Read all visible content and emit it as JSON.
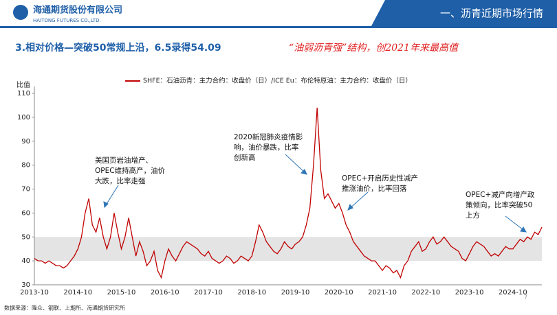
{
  "header": {
    "company": "海通期货股份有限公司",
    "company_en": "HAITONG FUTURES CO.,LTD.",
    "section": "一、沥青近期市场行情"
  },
  "subtitle": "3.相对价格—突破50常规上沿，6.5录得54.09",
  "highlight": "“油弱沥青强”结构，创2021年来最高值",
  "source": "数据来源：隆众、钢联、上期所、海通期货研究所",
  "page_number": "7",
  "chart_data": {
    "type": "line",
    "y_label": "比值",
    "x": [
      "2013-10",
      "2013-11",
      "2013-12",
      "2014-01",
      "2014-02",
      "2014-03",
      "2014-04",
      "2014-05",
      "2014-06",
      "2014-07",
      "2014-08",
      "2014-09",
      "2014-10",
      "2014-11",
      "2014-12",
      "2015-01",
      "2015-02",
      "2015-03",
      "2015-04",
      "2015-05",
      "2015-06",
      "2015-07",
      "2015-08",
      "2015-09",
      "2015-10",
      "2015-11",
      "2015-12",
      "2016-01",
      "2016-02",
      "2016-03",
      "2016-04",
      "2016-05",
      "2016-06",
      "2016-07",
      "2016-08",
      "2016-09",
      "2016-10",
      "2016-11",
      "2016-12",
      "2017-01",
      "2017-02",
      "2017-03",
      "2017-04",
      "2017-05",
      "2017-06",
      "2017-07",
      "2017-08",
      "2017-09",
      "2017-10",
      "2017-11",
      "2017-12",
      "2018-01",
      "2018-02",
      "2018-03",
      "2018-04",
      "2018-05",
      "2018-06",
      "2018-07",
      "2018-08",
      "2018-09",
      "2018-10",
      "2018-11",
      "2018-12",
      "2019-01",
      "2019-02",
      "2019-03",
      "2019-04",
      "2019-05",
      "2019-06",
      "2019-07",
      "2019-08",
      "2019-09",
      "2019-10",
      "2019-11",
      "2019-12",
      "2020-01",
      "2020-02",
      "2020-03",
      "2020-04",
      "2020-05",
      "2020-06",
      "2020-07",
      "2020-08",
      "2020-09",
      "2020-10",
      "2020-11",
      "2020-12",
      "2021-01",
      "2021-02",
      "2021-03",
      "2021-04",
      "2021-05",
      "2021-06",
      "2021-07",
      "2021-08",
      "2021-09",
      "2021-10",
      "2021-11",
      "2021-12",
      "2022-01",
      "2022-02",
      "2022-03",
      "2022-04",
      "2022-05",
      "2022-06",
      "2022-07",
      "2022-08",
      "2022-09",
      "2022-10",
      "2022-11",
      "2022-12",
      "2023-01",
      "2023-02",
      "2023-03",
      "2023-04",
      "2023-05",
      "2023-06",
      "2023-07",
      "2023-08",
      "2023-09",
      "2023-10",
      "2023-11",
      "2023-12",
      "2024-01",
      "2024-02",
      "2024-03",
      "2024-04",
      "2024-05",
      "2024-06",
      "2024-07",
      "2024-08",
      "2024-09",
      "2024-10",
      "2024-11",
      "2024-12",
      "2025-01",
      "2025-02",
      "2025-03",
      "2025-04",
      "2025-05",
      "2025-06"
    ],
    "series": [
      {
        "name": "SHFE：石油沥青：主力合约：收盘价（日）/ICE Eu：布伦特原油：主力合约：收盘价（日）",
        "color": "#c00000",
        "values": [
          41,
          40,
          40,
          39,
          40,
          39,
          38,
          38,
          37,
          38,
          40,
          42,
          45,
          50,
          60,
          66,
          55,
          52,
          58,
          50,
          45,
          50,
          60,
          52,
          45,
          50,
          58,
          50,
          42,
          48,
          44,
          38,
          40,
          44,
          36,
          33,
          40,
          45,
          42,
          40,
          43,
          46,
          48,
          47,
          46,
          45,
          43,
          42,
          44,
          41,
          40,
          39,
          40,
          42,
          41,
          39,
          40,
          42,
          41,
          40,
          42,
          48,
          55,
          52,
          48,
          46,
          44,
          43,
          45,
          48,
          46,
          45,
          47,
          48,
          50,
          55,
          62,
          80,
          104,
          78,
          66,
          68,
          65,
          62,
          64,
          60,
          55,
          52,
          48,
          46,
          44,
          42,
          41,
          40,
          40,
          38,
          36,
          38,
          37,
          35,
          36,
          33,
          38,
          40,
          44,
          46,
          48,
          44,
          45,
          48,
          50,
          47,
          48,
          50,
          48,
          46,
          45,
          44,
          41,
          40,
          43,
          46,
          48,
          47,
          46,
          44,
          42,
          43,
          42,
          44,
          46,
          45,
          45,
          47,
          49,
          48,
          50,
          49,
          52,
          51,
          54.09
        ]
      }
    ],
    "ylim": [
      30,
      110
    ],
    "yticks": [
      30,
      40,
      50,
      60,
      70,
      80,
      90,
      100,
      110
    ],
    "shaded_range": [
      40,
      50
    ],
    "shade_color": "#d9d9d9",
    "annotations": [
      [
        "美国页岩油增产、",
        "OPEC维持高产，油价",
        "大跌，比率走强"
      ],
      [
        "2020新冠肺炎疫情影",
        "响，油价暴跌，比率",
        "创新高"
      ],
      [
        "OPEC+开启历史性减产",
        "推涨油价，比率回落"
      ],
      [
        "OPEC+减产向增产政",
        "策倾向，比率突破50",
        "上方"
      ]
    ]
  }
}
